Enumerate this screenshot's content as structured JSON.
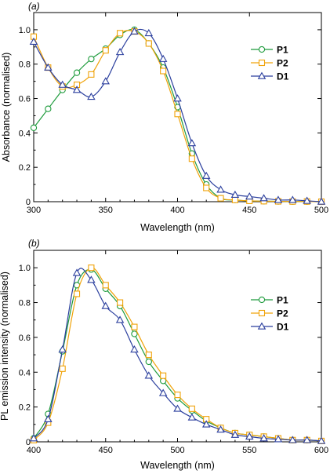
{
  "chart_data": [
    {
      "type": "line",
      "panel_label": "(a)",
      "xlabel": "Wavelength (nm)",
      "ylabel": "Absorbance (normalised)",
      "xlim": [
        300,
        500
      ],
      "ylim": [
        0,
        1.1
      ],
      "xticks": [
        300,
        350,
        400,
        450,
        500
      ],
      "yticks": [
        0,
        0.2,
        0.4,
        0.6,
        0.8,
        1.0
      ],
      "ytick_labels": [
        "0",
        "0.2",
        "0.4",
        "0.6",
        "0.8",
        "1.0"
      ],
      "legend_position": "right",
      "series": [
        {
          "name": "P1",
          "color": "#1e9b3c",
          "marker": "circle",
          "x": [
            300,
            310,
            320,
            330,
            340,
            350,
            360,
            370,
            380,
            390,
            400,
            410,
            420,
            430,
            440,
            450,
            460,
            470,
            480,
            490,
            500
          ],
          "y": [
            0.43,
            0.54,
            0.65,
            0.75,
            0.83,
            0.89,
            0.97,
            1.0,
            0.92,
            0.78,
            0.55,
            0.28,
            0.1,
            0.02,
            0.01,
            0.005,
            0.003,
            0.002,
            0.001,
            0.001,
            0.0
          ]
        },
        {
          "name": "P2",
          "color": "#f0a30a",
          "marker": "square",
          "x": [
            300,
            310,
            320,
            330,
            340,
            350,
            360,
            370,
            380,
            390,
            400,
            410,
            420,
            430,
            440,
            450,
            460,
            470,
            480,
            490,
            500
          ],
          "y": [
            0.96,
            0.78,
            0.67,
            0.68,
            0.74,
            0.88,
            0.98,
            0.99,
            0.92,
            0.76,
            0.51,
            0.25,
            0.08,
            0.02,
            0.01,
            0.005,
            0.003,
            0.002,
            0.001,
            0.001,
            0.0
          ]
        },
        {
          "name": "D1",
          "color": "#2b3f9e",
          "marker": "triangle",
          "x": [
            300,
            310,
            320,
            330,
            340,
            350,
            360,
            370,
            380,
            390,
            400,
            410,
            420,
            430,
            440,
            450,
            460,
            470,
            480,
            490,
            500
          ],
          "y": [
            0.93,
            0.78,
            0.68,
            0.65,
            0.61,
            0.7,
            0.87,
            0.99,
            0.98,
            0.83,
            0.6,
            0.34,
            0.15,
            0.07,
            0.04,
            0.03,
            0.02,
            0.01,
            0.01,
            0.005,
            0.0
          ]
        }
      ]
    },
    {
      "type": "line",
      "panel_label": "(b)",
      "xlabel": "Wavelength (nm)",
      "ylabel": "PL emission intensity (normalised)",
      "xlim": [
        400,
        600
      ],
      "ylim": [
        0,
        1.1
      ],
      "xticks": [
        400,
        450,
        500,
        550,
        600
      ],
      "yticks": [
        0,
        0.2,
        0.4,
        0.6,
        0.8,
        1.0
      ],
      "ytick_labels": [
        "0",
        "0.2",
        "0.4",
        "0.6",
        "0.8",
        "1.0"
      ],
      "legend_position": "right",
      "series": [
        {
          "name": "P1",
          "color": "#1e9b3c",
          "marker": "circle",
          "x": [
            400,
            410,
            420,
            430,
            440,
            450,
            460,
            470,
            480,
            490,
            500,
            510,
            520,
            530,
            540,
            550,
            560,
            570,
            580,
            590,
            600
          ],
          "y": [
            0.02,
            0.16,
            0.52,
            0.9,
            0.99,
            0.88,
            0.78,
            0.62,
            0.46,
            0.35,
            0.25,
            0.18,
            0.12,
            0.08,
            0.05,
            0.04,
            0.03,
            0.02,
            0.01,
            0.01,
            0.005
          ]
        },
        {
          "name": "P2",
          "color": "#f0a30a",
          "marker": "square",
          "x": [
            400,
            410,
            420,
            430,
            440,
            450,
            460,
            470,
            480,
            490,
            500,
            510,
            520,
            530,
            540,
            550,
            560,
            570,
            580,
            590,
            600
          ],
          "y": [
            0.01,
            0.11,
            0.42,
            0.85,
            1.0,
            0.9,
            0.8,
            0.66,
            0.5,
            0.38,
            0.27,
            0.19,
            0.13,
            0.08,
            0.05,
            0.04,
            0.03,
            0.02,
            0.01,
            0.01,
            0.005
          ]
        },
        {
          "name": "D1",
          "color": "#2b3f9e",
          "marker": "triangle",
          "x": [
            400,
            410,
            420,
            430,
            440,
            450,
            460,
            470,
            480,
            490,
            500,
            510,
            520,
            530,
            540,
            550,
            560,
            570,
            580,
            590,
            600
          ],
          "y": [
            0.02,
            0.13,
            0.53,
            0.97,
            0.93,
            0.78,
            0.7,
            0.53,
            0.38,
            0.28,
            0.19,
            0.14,
            0.1,
            0.07,
            0.04,
            0.03,
            0.02,
            0.015,
            0.01,
            0.01,
            0.005
          ]
        }
      ]
    }
  ]
}
